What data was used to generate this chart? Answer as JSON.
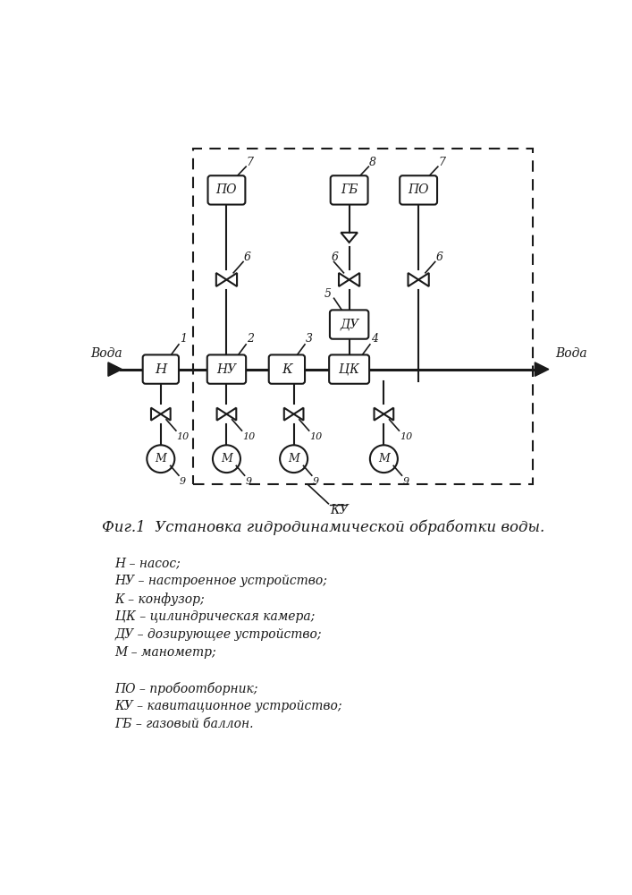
{
  "title": "Фиг.1  Установка гидродинамической обработки воды.",
  "legend_items": [
    "Н – насос;",
    "НУ – настроенное устройство;",
    "К – конфузор;",
    "ЦК – цилиндрическая камера;",
    "ДУ – дозирующее устройство;",
    "М – манометр;",
    "",
    "ПО – пробоотборник;",
    "КУ – кавитационное устройство;",
    "ГБ – газовый баллон."
  ],
  "bg_color": "#ffffff",
  "line_color": "#1a1a1a"
}
